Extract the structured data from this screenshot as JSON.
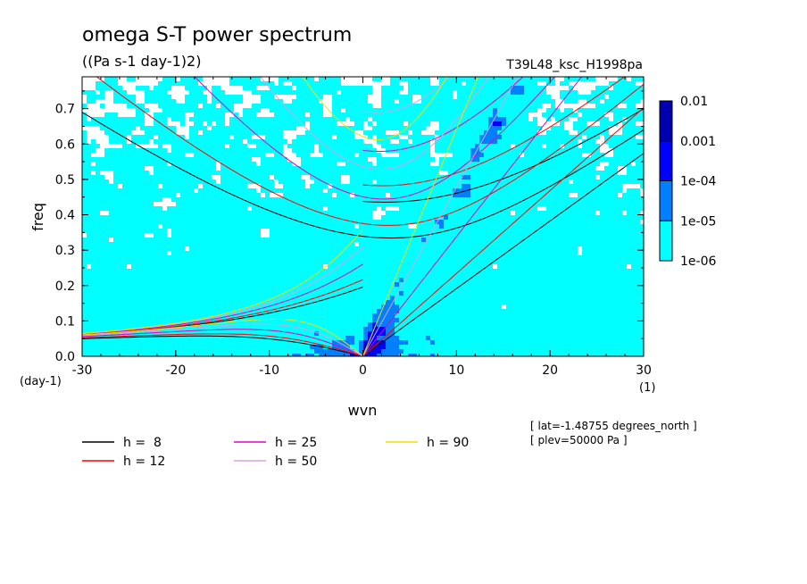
{
  "chart_data": {
    "type": "heatmap",
    "title": "omega S-T power spectrum",
    "subtitle": "((Pa s-1 day-1)2)",
    "run_label": "T39L48_ksc_H1998pa",
    "xlabel": "wvn",
    "ylabel": "freq",
    "y_unit": "(day-1)",
    "x_unit": "(1)",
    "xlim": [
      -30,
      30
    ],
    "ylim": [
      0,
      0.79
    ],
    "x_ticks": [
      -30,
      -20,
      -10,
      0,
      10,
      20,
      30
    ],
    "x_tick_labels": [
      "-30",
      "-20",
      "-10",
      "0",
      "10",
      "20",
      "30"
    ],
    "y_ticks": [
      0,
      0.1,
      0.2,
      0.3,
      0.4,
      0.5,
      0.6,
      0.7
    ],
    "y_tick_labels": [
      "0.0",
      "0.1",
      "0.2",
      "0.3",
      "0.4",
      "0.5",
      "0.6",
      "0.7"
    ],
    "colorbar": {
      "levels": [
        "1e-06",
        "1e-05",
        "1e-04",
        "0.001",
        "0.01"
      ],
      "colors": [
        "#00ffff",
        "#0080ff",
        "#0000ff",
        "#0000b0",
        "#5000b0"
      ]
    },
    "info_lines": [
      "[ lat=-1.48755 degrees_north ]",
      "[ plev=50000 Pa ]"
    ],
    "dispersion_curves": [
      {
        "label": "h =  8",
        "h": 8,
        "color": "#000000"
      },
      {
        "label": "h = 12",
        "h": 12,
        "color": "#ff0000"
      },
      {
        "label": "h = 25",
        "h": 25,
        "color": "#e000c0"
      },
      {
        "label": "h = 50",
        "h": 50,
        "color": "#d8a0e0"
      },
      {
        "label": "h = 90",
        "h": 90,
        "color": "#f0e000"
      }
    ]
  }
}
